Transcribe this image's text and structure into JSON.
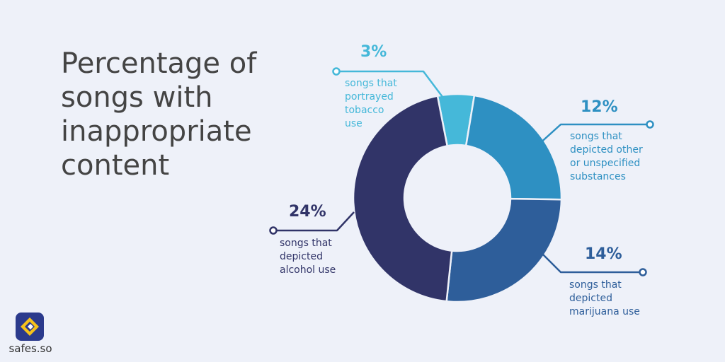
{
  "title": "Percentage of songs with inappropriate content",
  "brand": {
    "name": "safes.so"
  },
  "colors": {
    "background": "#eef1f9",
    "tobacco": "#45b8d9",
    "other": "#2e90c2",
    "marijuana": "#2e5e9a",
    "alcohol": "#313468"
  },
  "chart_data": {
    "type": "pie",
    "variant": "donut",
    "title": "Percentage of songs with inappropriate content",
    "slices": [
      {
        "key": "tobacco",
        "value": 3,
        "label": "3%",
        "desc": [
          "songs that",
          "portrayed",
          "tobacco",
          "use"
        ],
        "color": "#45b8d9"
      },
      {
        "key": "other",
        "value": 12,
        "label": "12%",
        "desc": [
          "songs that",
          "depicted other",
          "or unspecified",
          "substances"
        ],
        "color": "#2e90c2"
      },
      {
        "key": "marijuana",
        "value": 14,
        "label": "14%",
        "desc": [
          "songs that",
          "depicted",
          "marijuana use"
        ],
        "color": "#2e5e9a"
      },
      {
        "key": "alcohol",
        "value": 24,
        "label": "24%",
        "desc": [
          "songs that",
          "depicted",
          "alcohol use"
        ],
        "color": "#313468"
      }
    ]
  }
}
